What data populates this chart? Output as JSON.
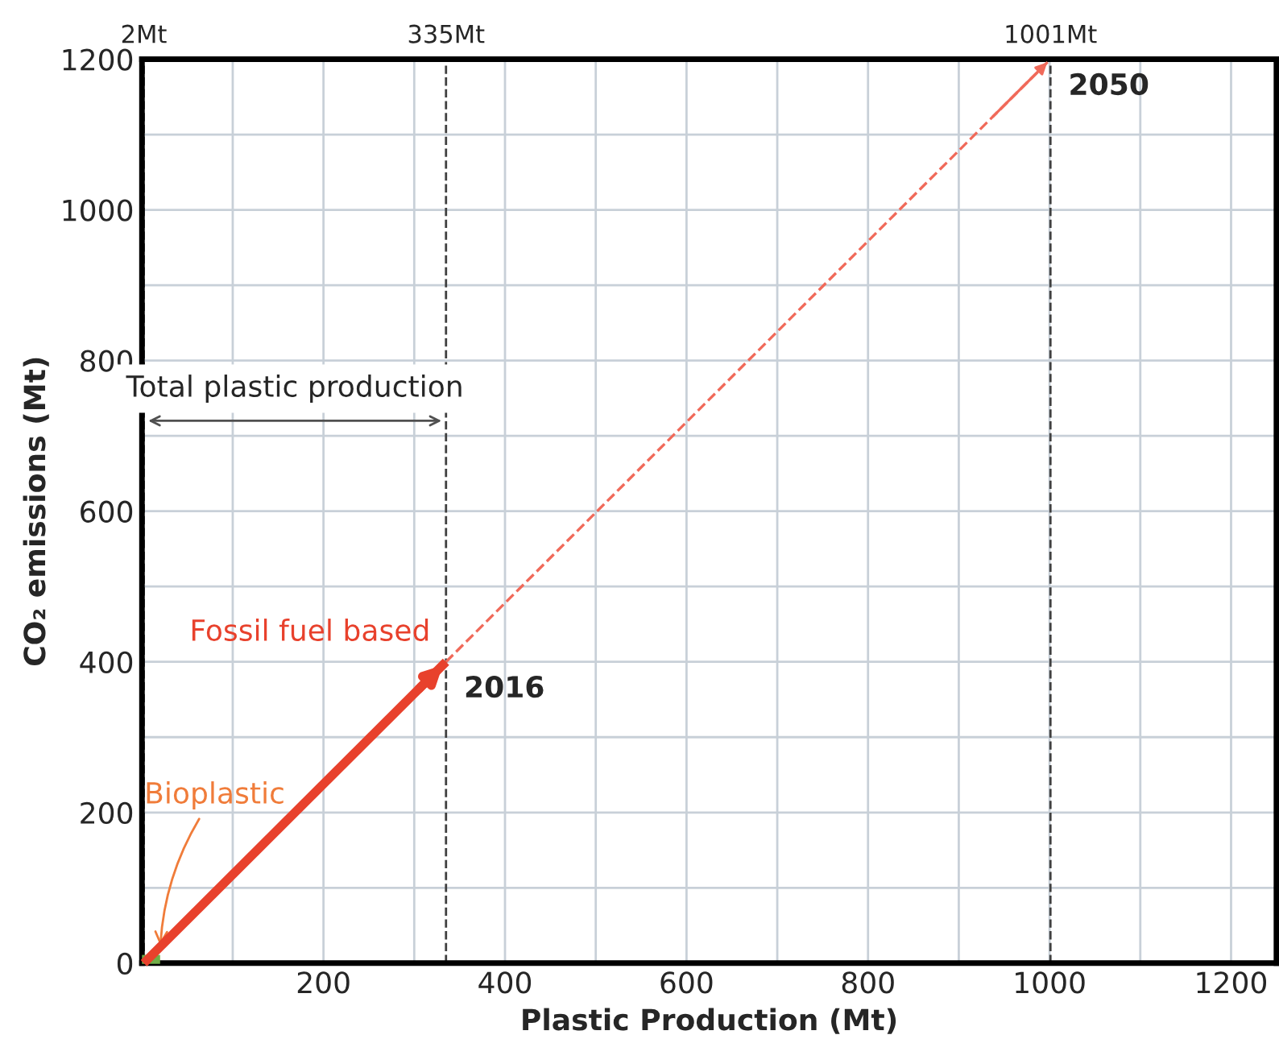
{
  "chart_data": {
    "type": "line",
    "xlabel": "Plastic Production (Mt)",
    "ylabel": "CO₂ emissions (Mt)",
    "series": [
      {
        "name": "Bioplastic",
        "color": "#70ad47",
        "x": [
          0,
          20
        ],
        "values": [
          5,
          5
        ],
        "line_style": "solid"
      },
      {
        "name": "Fossil fuel based",
        "color": "#e8412c",
        "x": [
          2,
          335
        ],
        "values": [
          0,
          400
        ],
        "line_style": "solid"
      },
      {
        "color": "#f06a5a",
        "x": [
          335,
          1001
        ],
        "values": [
          400,
          1200
        ],
        "line_style": "dashed"
      }
    ],
    "xlim": [
      0,
      1250
    ],
    "ylim": [
      0,
      1200
    ],
    "xticks": [
      {
        "value": 100,
        "label": null
      },
      200,
      {
        "value": 300,
        "label": null
      },
      400,
      {
        "value": 500,
        "label": null
      },
      600,
      {
        "value": 700,
        "label": null
      },
      800,
      {
        "value": 900,
        "label": null
      },
      1000,
      {
        "value": 1100,
        "label": null
      },
      1200
    ],
    "yticks": [
      0,
      {
        "value": 100,
        "label": null
      },
      200,
      {
        "value": 300,
        "label": null
      },
      400,
      {
        "value": 500,
        "label": null
      },
      600,
      {
        "value": 700,
        "label": null
      },
      800,
      {
        "value": 900,
        "label": null
      },
      1000,
      {
        "value": 1100,
        "label": null
      },
      1200
    ],
    "ref_lines": [
      {
        "axis": "x",
        "value": 2,
        "label": "2Mt",
        "color": "#404040",
        "line_style": "dashed"
      },
      {
        "axis": "x",
        "value": 335,
        "label": "335Mt",
        "color": "#404040",
        "line_style": "dashed"
      },
      {
        "axis": "x",
        "value": 1001,
        "label": "1001Mt",
        "color": "#404040",
        "line_style": "dashed"
      }
    ],
    "annotations": [
      {
        "text": "2016",
        "x": 335,
        "y": 400
      },
      {
        "text": "2050",
        "x": 1001,
        "y": 1200
      },
      "Total plastic production"
    ],
    "grid": true,
    "marker": "none"
  }
}
